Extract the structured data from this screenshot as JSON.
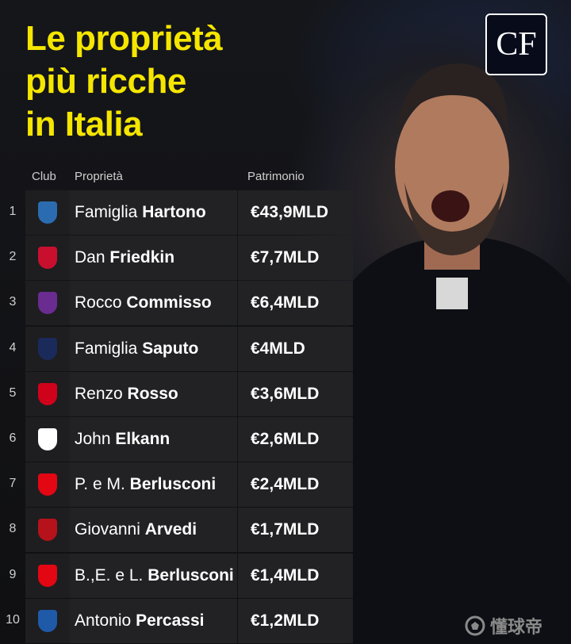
{
  "title": [
    "Le proprietà",
    "più ricche",
    "in Italia"
  ],
  "brand_logo": "CF",
  "headers": {
    "club": "Club",
    "owner": "Proprietà",
    "wealth": "Patrimonio"
  },
  "colors": {
    "title": "#f5e600",
    "background": "#121214",
    "cell": "#222224"
  },
  "rows": [
    {
      "rank": "1",
      "logo": "como-logo",
      "logo_color": "#2b6cb0",
      "first": "Famiglia",
      "last": "Hartono",
      "value": "€43,9MLD"
    },
    {
      "rank": "2",
      "logo": "roma-logo",
      "logo_color": "#c8102e",
      "first": "Dan",
      "last": "Friedkin",
      "value": "€7,7MLD"
    },
    {
      "rank": "3",
      "logo": "fiorentina-logo",
      "logo_color": "#6a2c91",
      "first": "Rocco",
      "last": "Commisso",
      "value": "€6,4MLD"
    },
    {
      "rank": "4",
      "logo": "bologna-logo",
      "logo_color": "#1a2a5a",
      "first": "Famiglia",
      "last": "Saputo",
      "value": "€4MLD"
    },
    {
      "rank": "5",
      "logo": "vicenza-logo",
      "logo_color": "#d0021b",
      "first": "Renzo",
      "last": "Rosso",
      "value": "€3,6MLD"
    },
    {
      "rank": "6",
      "logo": "juventus-logo",
      "logo_color": "#ffffff",
      "first": "John",
      "last": "Elkann",
      "value": "€2,6MLD"
    },
    {
      "rank": "7",
      "logo": "monza-logo",
      "logo_color": "#e30613",
      "first": "P. e M.",
      "last": "Berlusconi",
      "value": "€2,4MLD"
    },
    {
      "rank": "8",
      "logo": "cremonese-logo",
      "logo_color": "#b5121b",
      "first": "Giovanni",
      "last": "Arvedi",
      "value": "€1,7MLD"
    },
    {
      "rank": "9",
      "logo": "monza-logo",
      "logo_color": "#e30613",
      "first": "B.,E. e L.",
      "last": "Berlusconi",
      "value": "€1,4MLD"
    },
    {
      "rank": "10",
      "logo": "atalanta-logo",
      "logo_color": "#1e5aa8",
      "first": "Antonio",
      "last": "Percassi",
      "value": "€1,2MLD"
    }
  ],
  "watermark": "懂球帝"
}
